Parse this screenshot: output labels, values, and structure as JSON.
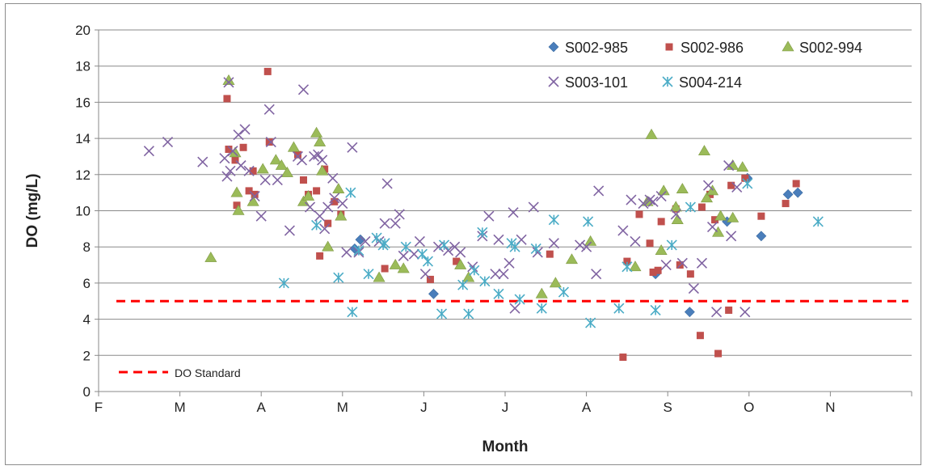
{
  "chart_data": {
    "type": "scatter",
    "title": "",
    "xlabel": "Month",
    "ylabel": "DO (mg/L)",
    "x_tick_labels": [
      "F",
      "M",
      "A",
      "M",
      "J",
      "J",
      "A",
      "S",
      "O",
      "N"
    ],
    "x_axis_note": "tick labels mark month starts Feb–Nov; x values below are in months since Feb 1 (0 = Feb 1, 1 = Mar 1, ...)",
    "ylim": [
      0,
      20
    ],
    "y_ticks": [
      0,
      2,
      4,
      6,
      8,
      10,
      12,
      14,
      16,
      18,
      20
    ],
    "grid": true,
    "legend_position": "top-right",
    "series": [
      {
        "name": "S002-985",
        "marker": "diamond",
        "color": "#4a7ebb",
        "points": [
          [
            3.15,
            7.9
          ],
          [
            3.22,
            8.4
          ],
          [
            4.12,
            5.4
          ],
          [
            6.85,
            6.5
          ],
          [
            7.27,
            4.4
          ],
          [
            7.73,
            9.4
          ],
          [
            7.98,
            11.8
          ],
          [
            8.15,
            8.6
          ],
          [
            8.48,
            10.9
          ],
          [
            8.6,
            11.0
          ]
        ]
      },
      {
        "name": "S002-986",
        "marker": "square",
        "color": "#c0504d",
        "points": [
          [
            1.58,
            16.2
          ],
          [
            1.6,
            13.4
          ],
          [
            1.68,
            12.8
          ],
          [
            1.7,
            10.3
          ],
          [
            1.78,
            13.5
          ],
          [
            1.85,
            11.1
          ],
          [
            1.9,
            12.2
          ],
          [
            1.92,
            10.9
          ],
          [
            2.08,
            17.7
          ],
          [
            2.1,
            13.8
          ],
          [
            2.45,
            13.1
          ],
          [
            2.52,
            11.7
          ],
          [
            2.58,
            10.9
          ],
          [
            2.68,
            11.1
          ],
          [
            2.72,
            7.5
          ],
          [
            2.78,
            12.3
          ],
          [
            2.82,
            9.3
          ],
          [
            2.9,
            10.5
          ],
          [
            2.98,
            9.8
          ],
          [
            3.52,
            6.8
          ],
          [
            4.08,
            6.2
          ],
          [
            4.4,
            7.2
          ],
          [
            5.55,
            7.6
          ],
          [
            6.45,
            1.9
          ],
          [
            6.5,
            7.2
          ],
          [
            6.65,
            9.8
          ],
          [
            6.78,
            8.2
          ],
          [
            6.82,
            6.6
          ],
          [
            6.88,
            6.7
          ],
          [
            6.92,
            9.4
          ],
          [
            7.1,
            10.1
          ],
          [
            7.15,
            7.0
          ],
          [
            7.28,
            6.5
          ],
          [
            7.4,
            3.1
          ],
          [
            7.42,
            10.2
          ],
          [
            7.52,
            10.9
          ],
          [
            7.58,
            9.5
          ],
          [
            7.62,
            2.1
          ],
          [
            7.75,
            4.5
          ],
          [
            7.78,
            11.4
          ],
          [
            7.95,
            11.8
          ],
          [
            8.15,
            9.7
          ],
          [
            8.45,
            10.4
          ],
          [
            8.58,
            11.5
          ]
        ]
      },
      {
        "name": "S002-994",
        "marker": "triangle",
        "color": "#9bbb59",
        "points": [
          [
            1.38,
            7.4
          ],
          [
            1.6,
            17.2
          ],
          [
            1.68,
            13.2
          ],
          [
            1.7,
            11.0
          ],
          [
            1.72,
            10.0
          ],
          [
            1.9,
            10.5
          ],
          [
            2.02,
            12.3
          ],
          [
            2.18,
            12.8
          ],
          [
            2.25,
            12.5
          ],
          [
            2.32,
            12.1
          ],
          [
            2.4,
            13.5
          ],
          [
            2.52,
            10.5
          ],
          [
            2.58,
            10.8
          ],
          [
            2.68,
            14.3
          ],
          [
            2.72,
            13.8
          ],
          [
            2.75,
            12.2
          ],
          [
            2.82,
            8.0
          ],
          [
            2.95,
            11.2
          ],
          [
            2.98,
            9.7
          ],
          [
            3.45,
            6.3
          ],
          [
            3.65,
            7.0
          ],
          [
            3.75,
            6.8
          ],
          [
            4.45,
            7.0
          ],
          [
            4.55,
            6.3
          ],
          [
            5.45,
            5.4
          ],
          [
            5.62,
            6.0
          ],
          [
            5.82,
            7.3
          ],
          [
            6.05,
            8.3
          ],
          [
            6.6,
            6.9
          ],
          [
            6.75,
            10.5
          ],
          [
            6.8,
            14.2
          ],
          [
            6.92,
            7.8
          ],
          [
            6.95,
            11.1
          ],
          [
            7.1,
            10.2
          ],
          [
            7.12,
            9.5
          ],
          [
            7.18,
            11.2
          ],
          [
            7.45,
            13.3
          ],
          [
            7.48,
            10.7
          ],
          [
            7.55,
            11.1
          ],
          [
            7.65,
            9.7
          ],
          [
            7.62,
            8.8
          ],
          [
            7.8,
            12.5
          ],
          [
            7.8,
            9.6
          ],
          [
            7.92,
            12.4
          ]
        ]
      },
      {
        "name": "S003-101",
        "marker": "x",
        "color": "#8064a2",
        "points": [
          [
            0.62,
            13.3
          ],
          [
            0.85,
            13.8
          ],
          [
            1.28,
            12.7
          ],
          [
            1.55,
            12.9
          ],
          [
            1.58,
            11.9
          ],
          [
            1.6,
            17.1
          ],
          [
            1.62,
            12.2
          ],
          [
            1.65,
            13.3
          ],
          [
            1.72,
            14.2
          ],
          [
            1.75,
            12.5
          ],
          [
            1.8,
            14.5
          ],
          [
            1.85,
            12.2
          ],
          [
            1.92,
            10.8
          ],
          [
            2.0,
            9.7
          ],
          [
            2.05,
            11.7
          ],
          [
            2.1,
            15.6
          ],
          [
            2.12,
            13.8
          ],
          [
            2.2,
            11.7
          ],
          [
            2.35,
            8.9
          ],
          [
            2.45,
            13.0
          ],
          [
            2.5,
            12.8
          ],
          [
            2.52,
            16.7
          ],
          [
            2.6,
            10.2
          ],
          [
            2.65,
            13.0
          ],
          [
            2.7,
            13.1
          ],
          [
            2.72,
            9.7
          ],
          [
            2.75,
            12.8
          ],
          [
            2.78,
            9.0
          ],
          [
            2.82,
            10.2
          ],
          [
            2.88,
            11.8
          ],
          [
            2.9,
            10.7
          ],
          [
            3.0,
            10.4
          ],
          [
            3.05,
            7.7
          ],
          [
            3.12,
            13.5
          ],
          [
            3.2,
            7.7
          ],
          [
            3.28,
            8.3
          ],
          [
            3.45,
            8.3
          ],
          [
            3.52,
            9.3
          ],
          [
            3.55,
            11.5
          ],
          [
            3.65,
            9.3
          ],
          [
            3.7,
            9.8
          ],
          [
            3.75,
            7.5
          ],
          [
            3.88,
            7.6
          ],
          [
            3.95,
            8.3
          ],
          [
            4.02,
            6.5
          ],
          [
            4.18,
            8.0
          ],
          [
            4.3,
            7.8
          ],
          [
            4.38,
            8.0
          ],
          [
            4.45,
            7.7
          ],
          [
            4.6,
            6.9
          ],
          [
            4.72,
            8.6
          ],
          [
            4.8,
            9.7
          ],
          [
            4.88,
            6.5
          ],
          [
            4.92,
            8.4
          ],
          [
            4.98,
            6.5
          ],
          [
            5.05,
            7.1
          ],
          [
            5.1,
            9.9
          ],
          [
            5.12,
            4.6
          ],
          [
            5.2,
            8.4
          ],
          [
            5.35,
            10.2
          ],
          [
            5.4,
            7.7
          ],
          [
            5.6,
            8.2
          ],
          [
            5.92,
            8.1
          ],
          [
            6.0,
            8.0
          ],
          [
            6.15,
            11.1
          ],
          [
            6.12,
            6.5
          ],
          [
            6.45,
            8.9
          ],
          [
            6.55,
            10.6
          ],
          [
            6.6,
            8.3
          ],
          [
            6.7,
            10.4
          ],
          [
            6.78,
            10.6
          ],
          [
            6.82,
            10.5
          ],
          [
            6.92,
            10.8
          ],
          [
            6.98,
            7.0
          ],
          [
            7.1,
            9.8
          ],
          [
            7.18,
            7.1
          ],
          [
            7.32,
            5.7
          ],
          [
            7.42,
            7.1
          ],
          [
            7.5,
            11.4
          ],
          [
            7.55,
            9.1
          ],
          [
            7.6,
            4.4
          ],
          [
            7.75,
            12.5
          ],
          [
            7.78,
            8.6
          ],
          [
            7.85,
            11.3
          ],
          [
            7.95,
            4.4
          ]
        ]
      },
      {
        "name": "S004-214",
        "marker": "asterisk",
        "color": "#4bacc6",
        "points": [
          [
            2.28,
            6.0
          ],
          [
            2.68,
            9.2
          ],
          [
            2.95,
            6.3
          ],
          [
            3.1,
            11.0
          ],
          [
            3.12,
            4.4
          ],
          [
            3.2,
            7.8
          ],
          [
            3.32,
            6.5
          ],
          [
            3.42,
            8.5
          ],
          [
            3.5,
            8.1
          ],
          [
            3.52,
            8.2
          ],
          [
            3.78,
            8.0
          ],
          [
            3.98,
            7.6
          ],
          [
            4.05,
            7.2
          ],
          [
            4.22,
            4.3
          ],
          [
            4.25,
            8.1
          ],
          [
            4.48,
            5.9
          ],
          [
            4.55,
            4.3
          ],
          [
            4.62,
            6.7
          ],
          [
            4.72,
            8.8
          ],
          [
            4.75,
            6.1
          ],
          [
            4.92,
            5.4
          ],
          [
            5.08,
            8.2
          ],
          [
            5.12,
            8.0
          ],
          [
            5.18,
            5.1
          ],
          [
            5.38,
            7.9
          ],
          [
            5.45,
            4.6
          ],
          [
            5.6,
            9.5
          ],
          [
            5.72,
            5.5
          ],
          [
            6.02,
            9.4
          ],
          [
            6.05,
            3.8
          ],
          [
            6.4,
            4.6
          ],
          [
            6.5,
            6.9
          ],
          [
            6.85,
            4.5
          ],
          [
            7.05,
            8.1
          ],
          [
            7.28,
            10.2
          ],
          [
            7.98,
            11.5
          ],
          [
            8.85,
            9.4
          ]
        ]
      }
    ],
    "reference_line": {
      "name": "DO Standard",
      "y": 5,
      "color": "#ff0000",
      "style": "dashed"
    }
  }
}
